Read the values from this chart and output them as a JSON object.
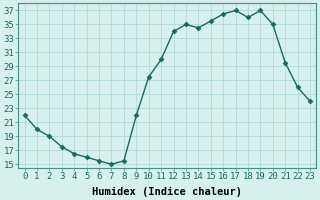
{
  "x": [
    0,
    1,
    2,
    3,
    4,
    5,
    6,
    7,
    8,
    9,
    10,
    11,
    12,
    13,
    14,
    15,
    16,
    17,
    18,
    19,
    20,
    21,
    22,
    23
  ],
  "y": [
    22,
    20,
    19,
    17.5,
    16.5,
    16,
    15.5,
    15,
    15.5,
    22,
    27.5,
    30,
    34,
    35,
    34.5,
    35.5,
    36.5,
    37,
    36,
    37,
    35,
    29.5,
    26,
    24
  ],
  "xlabel": "Humidex (Indice chaleur)",
  "line_color": "#1a6b5a",
  "marker": "D",
  "marker_size": 2.5,
  "bg_color": "#d6f0ee",
  "grid_color": "#b8dcd8",
  "ylim": [
    14.5,
    38
  ],
  "xlim": [
    -0.5,
    23.5
  ],
  "yticks": [
    15,
    17,
    19,
    21,
    23,
    25,
    27,
    29,
    31,
    33,
    35,
    37
  ],
  "xticks": [
    0,
    1,
    2,
    3,
    4,
    5,
    6,
    7,
    8,
    9,
    10,
    11,
    12,
    13,
    14,
    15,
    16,
    17,
    18,
    19,
    20,
    21,
    22,
    23
  ],
  "tick_fontsize": 6.5,
  "label_fontsize": 7.5,
  "linewidth": 1.0
}
